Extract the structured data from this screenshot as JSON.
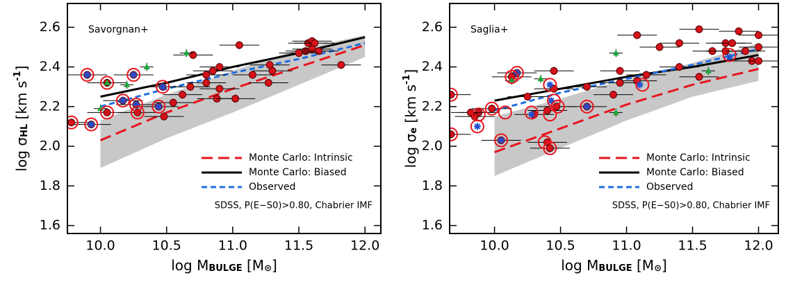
{
  "chart_data": [
    {
      "type": "scatter",
      "annotation": "Savorgnan+",
      "note": "SDSS, P(E−S0)>0.80, Chabrier IMF",
      "xlabel": [
        "log M",
        "BULGE",
        " [M",
        "⊙",
        "]"
      ],
      "ylabel": [
        "log σ",
        "HL",
        " [km s",
        "-1",
        "]"
      ],
      "xlim": [
        9.75,
        12.12
      ],
      "ylim": [
        1.56,
        2.72
      ],
      "xticks": [
        {
          "value": 10,
          "label": "10.0"
        },
        10.5,
        {
          "value": 11,
          "label": "11.0"
        },
        11.5,
        {
          "value": 12,
          "label": "12.0"
        }
      ],
      "yticks": [
        1.6,
        1.8,
        {
          "value": 2,
          "label": "2.0"
        },
        2.2,
        2.4,
        2.6
      ],
      "legend": "lower right",
      "band": {
        "color": "#c8c8c8",
        "x": [
          10,
          10.5,
          11,
          11.5,
          12
        ],
        "lower": [
          1.89,
          2.04,
          2.17,
          2.31,
          2.45
        ],
        "upper": [
          2.13,
          2.26,
          2.38,
          2.49,
          2.56
        ]
      },
      "series": [
        {
          "name": "Monte Carlo: Intrinsic",
          "color": "#e8141c",
          "style": "dashed",
          "x": [
            10,
            10.5,
            11,
            11.5,
            12
          ],
          "values": [
            2.03,
            2.17,
            2.29,
            2.4,
            2.51
          ]
        },
        {
          "name": "Monte Carlo: Biased",
          "color": "#000000",
          "style": "solid",
          "x": [
            10,
            10.5,
            11,
            11.5,
            12
          ],
          "values": [
            2.25,
            2.32,
            2.4,
            2.47,
            2.55
          ]
        },
        {
          "name": "Observed",
          "color": "#1f6fe0",
          "style": "dotted",
          "x": [
            10,
            10.5,
            11,
            11.5,
            12
          ],
          "values": [
            2.2,
            2.29,
            2.37,
            2.44,
            2.52
          ]
        }
      ],
      "points": [
        {
          "marker": "circle",
          "color": "#d4121a",
          "xerr": 0.15,
          "yerr": 0.02,
          "x": [
            11.57,
            11.6,
            11.62,
            11.55,
            11.6,
            11.65,
            11.5,
            11.05,
            11.82,
            11.28,
            11.3,
            10.7,
            10.9,
            10.85,
            10.8,
            11.15,
            11.27,
            10.8,
            10.9,
            10.68,
            10.62,
            10.88,
            11.02,
            10.55,
            10.48,
            10.28,
            10.27,
            10.05,
            10.17,
            9.93,
            9.78,
            9.9,
            10.05,
            10.25,
            10.47,
            10.44
          ],
          "y": [
            2.52,
            2.53,
            2.52,
            2.48,
            2.49,
            2.48,
            2.47,
            2.51,
            2.41,
            2.41,
            2.38,
            2.46,
            2.4,
            2.38,
            2.36,
            2.36,
            2.32,
            2.32,
            2.29,
            2.3,
            2.26,
            2.24,
            2.24,
            2.22,
            2.15,
            2.17,
            2.21,
            2.17,
            2.23,
            2.11,
            2.12,
            2.36,
            2.32,
            2.36,
            2.3,
            2.2
          ]
        },
        {
          "marker": "triangle",
          "color": "#1aa83a",
          "xerr": 0.05,
          "yerr": 0.02,
          "x": [
            10.65,
            10.35,
            10.2,
            10.05,
            10.0
          ],
          "y": [
            2.47,
            2.4,
            2.31,
            2.32,
            2.19
          ]
        },
        {
          "marker": "star",
          "color": "#1f4fd0",
          "x": [
            9.9,
            10.25,
            10.17,
            10.44,
            10.27,
            9.93,
            10.47
          ],
          "y": [
            2.36,
            2.36,
            2.23,
            2.2,
            2.21,
            2.11,
            2.3
          ]
        },
        {
          "marker": "ring",
          "color": "#e8141c",
          "x": [
            9.9,
            10.05,
            10.25,
            10.47,
            10.17,
            10.27,
            10.44,
            10.28,
            10.05,
            9.93,
            9.78
          ],
          "y": [
            2.36,
            2.32,
            2.36,
            2.3,
            2.23,
            2.21,
            2.2,
            2.17,
            2.17,
            2.11,
            2.12
          ]
        }
      ]
    },
    {
      "type": "scatter",
      "annotation": "Saglia+",
      "note": "SDSS, P(E−S0)>0.80, Chabrier IMF",
      "xlabel": [
        "log M",
        "BULGE",
        " [M",
        "⊙",
        "]"
      ],
      "ylabel": [
        "log σ",
        "e",
        " [km s",
        "-1",
        "]"
      ],
      "xlim": [
        9.66,
        12.15
      ],
      "ylim": [
        1.56,
        2.72
      ],
      "xticks": [
        {
          "value": 10,
          "label": "10.0"
        },
        10.5,
        {
          "value": 11,
          "label": "11.0"
        },
        11.5,
        {
          "value": 12,
          "label": "12.0"
        }
      ],
      "yticks": [
        1.6,
        1.8,
        {
          "value": 2,
          "label": "2.0"
        },
        2.2,
        2.4,
        2.6
      ],
      "legend": "lower right",
      "band": {
        "color": "#c8c8c8",
        "x": [
          10,
          10.5,
          11,
          11.5,
          12
        ],
        "lower": [
          1.85,
          1.99,
          2.13,
          2.25,
          2.33
        ],
        "upper": [
          2.15,
          2.24,
          2.34,
          2.42,
          2.52
        ]
      },
      "series": [
        {
          "name": "Monte Carlo: Intrinsic",
          "color": "#e8141c",
          "style": "dashed",
          "x": [
            10,
            10.5,
            11,
            11.5,
            12
          ],
          "values": [
            1.97,
            2.09,
            2.21,
            2.31,
            2.39
          ]
        },
        {
          "name": "Monte Carlo: Biased",
          "color": "#000000",
          "style": "solid",
          "x": [
            10,
            10.5,
            11,
            11.5,
            12
          ],
          "values": [
            2.23,
            2.29,
            2.35,
            2.4,
            2.46
          ]
        },
        {
          "name": "Observed",
          "color": "#1f6fe0",
          "style": "dotted",
          "x": [
            10,
            10.5,
            11,
            11.5,
            12
          ],
          "values": [
            2.18,
            2.27,
            2.34,
            2.41,
            2.49
          ]
        }
      ],
      "points": [
        {
          "marker": "circle",
          "color": "#d4121a",
          "xerr": 0.15,
          "yerr": 0.02,
          "x": [
            11.55,
            11.85,
            12.0,
            11.08,
            11.4,
            11.25,
            11.75,
            11.8,
            11.65,
            11.75,
            11.9,
            12.0,
            11.95,
            12.0,
            11.55,
            11.4,
            11.15,
            11.08,
            10.95,
            10.95,
            10.7,
            10.45,
            10.45,
            10.9,
            10.25,
            10.4,
            10.3,
            10.47,
            10.7,
            10.4,
            10.42,
            10.05,
            9.98,
            9.88,
            9.85,
            9.82,
            9.67,
            9.67,
            10.13,
            10.17
          ],
          "y": [
            2.59,
            2.58,
            2.56,
            2.56,
            2.52,
            2.5,
            2.52,
            2.52,
            2.48,
            2.48,
            2.48,
            2.5,
            2.43,
            2.43,
            2.35,
            2.4,
            2.36,
            2.33,
            2.38,
            2.32,
            2.3,
            2.38,
            2.29,
            2.26,
            2.25,
            2.18,
            2.16,
            2.2,
            2.2,
            2.02,
            1.99,
            2.03,
            2.19,
            2.17,
            2.15,
            2.17,
            2.06,
            2.26,
            2.35,
            2.37
          ]
        },
        {
          "marker": "triangle",
          "color": "#1aa83a",
          "xerr": 0.05,
          "yerr": 0.02,
          "x": [
            10.92,
            11.62,
            10.92,
            10.35,
            10.13
          ],
          "y": [
            2.47,
            2.38,
            2.17,
            2.34,
            2.33
          ]
        },
        {
          "marker": "star",
          "color": "#1f4fd0",
          "x": [
            10.17,
            10.42,
            10.43,
            9.87,
            10.28,
            10.05,
            11.1,
            11.78,
            10.7
          ],
          "y": [
            2.37,
            2.31,
            2.23,
            2.1,
            2.16,
            2.03,
            2.31,
            2.45,
            2.2
          ]
        },
        {
          "marker": "ring",
          "color": "#e8141c",
          "x": [
            10.13,
            10.17,
            10.42,
            10.45,
            10.48,
            10.42,
            10.28,
            10.08,
            9.98,
            9.88,
            9.87,
            10.05,
            10.38,
            10.42,
            10.7,
            11.12,
            11.78,
            9.67,
            9.67
          ],
          "y": [
            2.35,
            2.37,
            2.31,
            2.23,
            2.2,
            2.16,
            2.17,
            2.17,
            2.19,
            2.16,
            2.1,
            2.03,
            2.02,
            1.99,
            2.2,
            2.31,
            2.46,
            2.26,
            2.06
          ]
        }
      ]
    }
  ]
}
